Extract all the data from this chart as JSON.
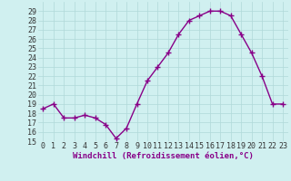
{
  "x": [
    0,
    1,
    2,
    3,
    4,
    5,
    6,
    7,
    8,
    9,
    10,
    11,
    12,
    13,
    14,
    15,
    16,
    17,
    18,
    19,
    20,
    21,
    22,
    23
  ],
  "y": [
    18.5,
    19.0,
    17.5,
    17.5,
    17.8,
    17.5,
    16.8,
    15.3,
    16.4,
    19.0,
    21.5,
    23.0,
    24.5,
    26.5,
    28.0,
    28.5,
    29.0,
    29.0,
    28.5,
    26.5,
    24.5,
    22.0,
    19.0,
    19.0
  ],
  "line_color": "#880088",
  "marker": "+",
  "marker_size": 5,
  "bg_color": "#d0f0f0",
  "grid_color": "#b0d8d8",
  "xlabel": "Windchill (Refroidissement éolien,°C)",
  "xlabel_fontsize": 6.5,
  "tick_fontsize": 6,
  "ylim": [
    15,
    30
  ],
  "yticks": [
    15,
    16,
    17,
    18,
    19,
    20,
    21,
    22,
    23,
    24,
    25,
    26,
    27,
    28,
    29
  ],
  "xlim": [
    -0.5,
    23.5
  ],
  "xticks": [
    0,
    1,
    2,
    3,
    4,
    5,
    6,
    7,
    8,
    9,
    10,
    11,
    12,
    13,
    14,
    15,
    16,
    17,
    18,
    19,
    20,
    21,
    22,
    23
  ]
}
